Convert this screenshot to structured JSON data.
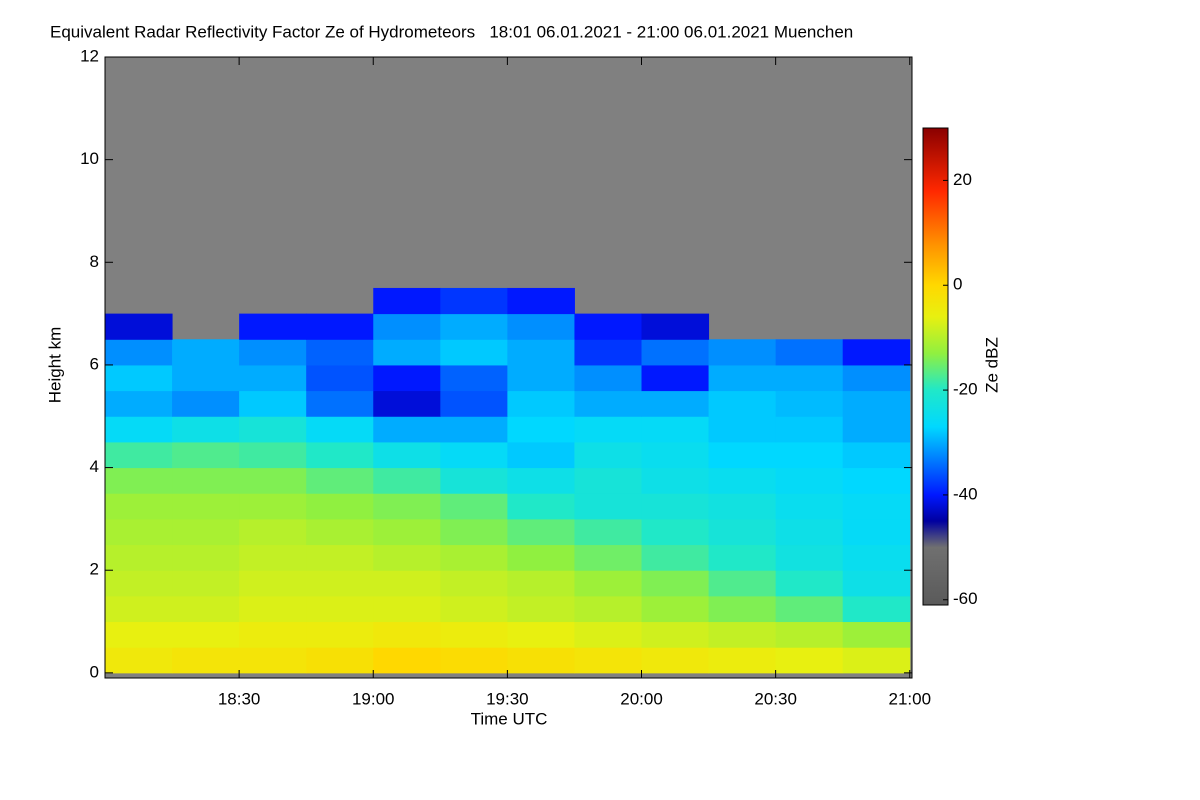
{
  "chart_data": {
    "type": "heatmap",
    "title": "Equivalent Radar Reflectivity Factor Ze of Hydrometeors   18:01 06.01.2021 - 21:00 06.01.2021 Muenchen",
    "x_label": "Time UTC",
    "y_label": "Height km",
    "colorbar_label": "Ze dBZ",
    "xlim": [
      1080,
      1260.5
    ],
    "ylim": [
      -0.1,
      12
    ],
    "xticks": [
      {
        "value": 1110,
        "label": "18:30"
      },
      {
        "value": 1140,
        "label": "19:00"
      },
      {
        "value": 1170,
        "label": "19:30"
      },
      {
        "value": 1200,
        "label": "20:00"
      },
      {
        "value": 1230,
        "label": "20:30"
      },
      {
        "value": 1260,
        "label": "21:00"
      }
    ],
    "yticks": [
      0,
      2,
      4,
      6,
      8,
      10,
      12
    ],
    "clim": [
      -61,
      30
    ],
    "cticks": [
      -60,
      -40,
      -20,
      0,
      20
    ],
    "background_color": "#808080",
    "colormap": [
      {
        "value": -61,
        "color": "#5a5a5a"
      },
      {
        "value": -50,
        "color": "#707070"
      },
      {
        "value": -45,
        "color": "#0000a0"
      },
      {
        "value": -40,
        "color": "#0018ff"
      },
      {
        "value": -33,
        "color": "#0080ff"
      },
      {
        "value": -27,
        "color": "#00d8ff"
      },
      {
        "value": -20,
        "color": "#20e8c8"
      },
      {
        "value": -13,
        "color": "#90f040"
      },
      {
        "value": -6,
        "color": "#e8f010"
      },
      {
        "value": 0,
        "color": "#ffd800"
      },
      {
        "value": 8,
        "color": "#ff9000"
      },
      {
        "value": 18,
        "color": "#ff2800"
      },
      {
        "value": 30,
        "color": "#8a0000"
      }
    ],
    "x": [
      1087.5,
      1102.5,
      1117.5,
      1132.5,
      1147.5,
      1162.5,
      1177.5,
      1192.5,
      1207.5,
      1222.5,
      1237.5,
      1252.5
    ],
    "y": [
      0.25,
      0.75,
      1.25,
      1.75,
      2.25,
      2.75,
      3.25,
      3.75,
      4.25,
      4.75,
      5.25,
      5.75,
      6.25,
      6.75,
      7.25
    ],
    "values": [
      [
        -4,
        -3,
        -3,
        -2,
        0,
        -1,
        -2,
        -3,
        -4,
        -5,
        -6,
        -7
      ],
      [
        -6,
        -6,
        -5,
        -5,
        -4,
        -5,
        -6,
        -7,
        -8,
        -9,
        -10,
        -12
      ],
      [
        -8,
        -8,
        -7,
        -7,
        -7,
        -8,
        -9,
        -10,
        -12,
        -14,
        -16,
        -20
      ],
      [
        -9,
        -9,
        -8,
        -8,
        -8,
        -9,
        -10,
        -12,
        -14,
        -17,
        -20,
        -24
      ],
      [
        -10,
        -10,
        -9,
        -9,
        -10,
        -11,
        -13,
        -15,
        -18,
        -20,
        -23,
        -25
      ],
      [
        -11,
        -11,
        -10,
        -11,
        -12,
        -14,
        -16,
        -18,
        -20,
        -22,
        -24,
        -26
      ],
      [
        -12,
        -12,
        -12,
        -13,
        -14,
        -16,
        -20,
        -22,
        -22,
        -23,
        -25,
        -26
      ],
      [
        -14,
        -14,
        -14,
        -16,
        -18,
        -22,
        -24,
        -22,
        -24,
        -25,
        -26,
        -27
      ],
      [
        -18,
        -17,
        -18,
        -20,
        -24,
        -26,
        -28,
        -24,
        -25,
        -27,
        -27,
        -28
      ],
      [
        -26,
        -24,
        -22,
        -26,
        -30,
        -30,
        -27,
        -26,
        -26,
        -28,
        -28,
        -30
      ],
      [
        -30,
        -32,
        -28,
        -34,
        -42,
        -36,
        -28,
        -30,
        -30,
        -28,
        -29,
        -30
      ],
      [
        -28,
        -30,
        -30,
        -36,
        -40,
        -35,
        -30,
        -32,
        -40,
        -30,
        -30,
        -32
      ],
      [
        -32,
        -30,
        -32,
        -35,
        -30,
        -28,
        -30,
        -38,
        -34,
        -32,
        -34,
        -40
      ],
      [
        -42,
        null,
        -40,
        -40,
        -32,
        -30,
        -32,
        -40,
        -42,
        null,
        null,
        null
      ],
      [
        null,
        null,
        null,
        null,
        -40,
        -38,
        -40,
        null,
        null,
        null,
        null,
        null
      ]
    ]
  }
}
